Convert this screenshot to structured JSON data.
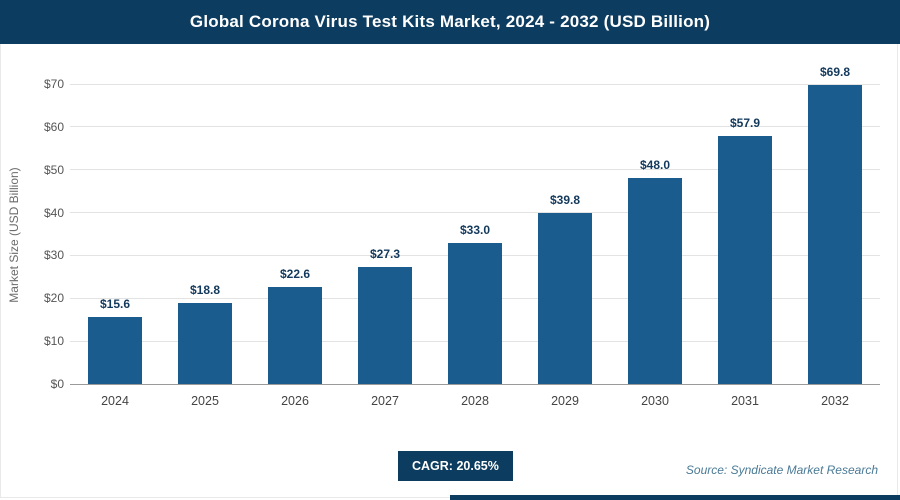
{
  "accent_color": "#0c3c5f",
  "bar_color": "#1b5c8e",
  "header": {
    "title": "Global Corona Virus Test Kits Market, 2024 - 2032 (USD Billion)"
  },
  "chart_data": {
    "type": "bar",
    "title": "Global Corona Virus Test Kits Market, 2024 - 2032 (USD Billion)",
    "categories": [
      "2024",
      "2025",
      "2026",
      "2027",
      "2028",
      "2029",
      "2030",
      "2031",
      "2032"
    ],
    "values": [
      15.6,
      18.8,
      22.6,
      27.3,
      33.0,
      39.8,
      48.0,
      57.9,
      69.8
    ],
    "value_labels": [
      "$15.6",
      "$18.8",
      "$22.6",
      "$27.3",
      "$33.0",
      "$39.8",
      "$48.0",
      "$57.9",
      "$69.8"
    ],
    "xlabel": "",
    "ylabel": "Market Size (USD Billion)",
    "ylim": [
      0,
      70
    ],
    "ytick_values": [
      0,
      10,
      20,
      30,
      40,
      50,
      60,
      70
    ],
    "ytick_labels": [
      "$0",
      "$10",
      "$20",
      "$30",
      "$40",
      "$50",
      "$60",
      "$70"
    ],
    "grid": true,
    "legend": false
  },
  "footer": {
    "cagr_label": "CAGR: 20.65%",
    "source": "Source: Syndicate Market Research"
  }
}
